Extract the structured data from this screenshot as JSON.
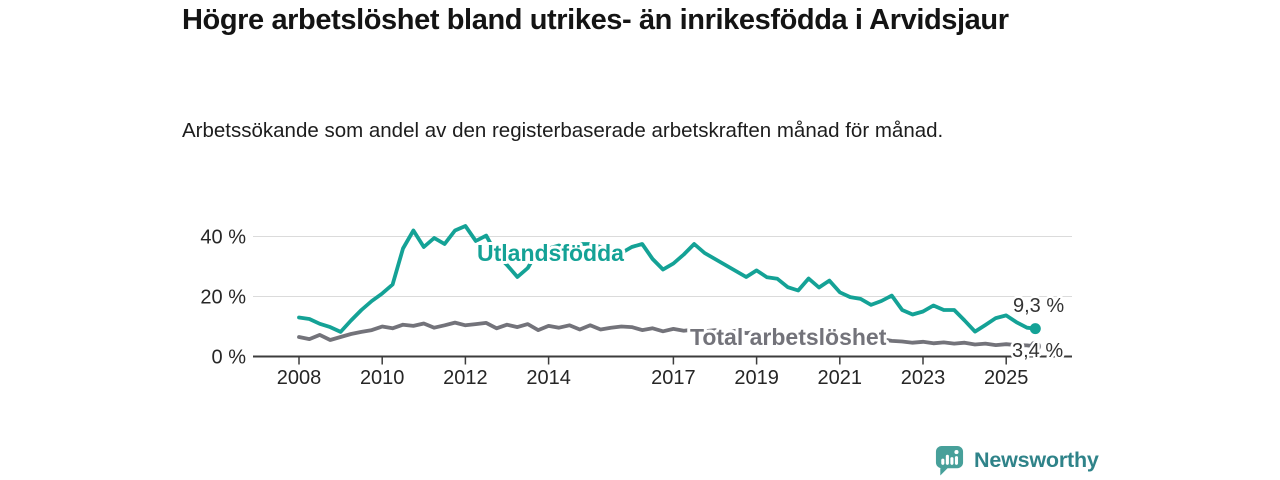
{
  "header": {},
  "chart_data": {
    "type": "line",
    "title": "Högre arbetslöshet bland utrikes- än inrikesfödda i Arvidsjaur",
    "subtitle": "Arbetssökande som andel av den registerbaserade arbetskraften månad för månad.",
    "grid": "horizontal",
    "legend_position": "inline-labels",
    "xlim": [
      2006.9,
      2026.6
    ],
    "ylim": [
      0,
      46
    ],
    "x_axis": {
      "ticks": [
        {
          "year": 2008,
          "label": "2008"
        },
        {
          "year": 2010,
          "label": "2010"
        },
        {
          "year": 2012,
          "label": "2012"
        },
        {
          "year": 2014,
          "label": "2014"
        },
        {
          "year": 2017,
          "label": "2017"
        },
        {
          "year": 2019,
          "label": "2019"
        },
        {
          "year": 2021,
          "label": "2021"
        },
        {
          "year": 2023,
          "label": "2023"
        },
        {
          "year": 2025,
          "label": "2025"
        }
      ]
    },
    "y_axis": {
      "ticks": [
        {
          "value": 0,
          "label": "0 %"
        },
        {
          "value": 20,
          "label": "20 %"
        },
        {
          "value": 40,
          "label": "40 %"
        }
      ]
    },
    "x": [
      2008,
      2008.25,
      2008.5,
      2008.75,
      2009,
      2009.25,
      2009.5,
      2009.75,
      2010,
      2010.25,
      2010.5,
      2010.75,
      2011,
      2011.25,
      2011.5,
      2011.75,
      2012,
      2012.25,
      2012.5,
      2012.75,
      2013,
      2013.25,
      2013.5,
      2013.75,
      2014,
      2014.25,
      2014.5,
      2014.75,
      2015,
      2015.25,
      2015.5,
      2015.75,
      2016,
      2016.25,
      2016.5,
      2016.75,
      2017,
      2017.25,
      2017.5,
      2017.75,
      2018,
      2018.25,
      2018.5,
      2018.75,
      2019,
      2019.25,
      2019.5,
      2019.75,
      2020,
      2020.25,
      2020.5,
      2020.75,
      2021,
      2021.25,
      2021.5,
      2021.75,
      2022,
      2022.25,
      2022.5,
      2022.75,
      2023,
      2023.25,
      2023.5,
      2023.75,
      2024,
      2024.25,
      2024.5,
      2024.75,
      2025,
      2025.25,
      2025.5,
      2025.7
    ],
    "series": [
      {
        "name": "Utlandsfödda",
        "color": "#14a296",
        "end_label": "9,3 %",
        "end_value": 9.3,
        "values": [
          13,
          12.5,
          10.9,
          9.8,
          8.2,
          12,
          15.5,
          18.5,
          21,
          24,
          36,
          42,
          36.5,
          39.5,
          37.5,
          42,
          43.5,
          38.5,
          40.3,
          34,
          30.5,
          26.5,
          29.5,
          35.5,
          36,
          37,
          35.5,
          37.5,
          37.5,
          36.5,
          35,
          34.5,
          36.5,
          37.5,
          32.5,
          29,
          31,
          34,
          37.5,
          34.5,
          32.5,
          30.5,
          28.5,
          26.5,
          28.7,
          26.4,
          25.9,
          23.1,
          22,
          26,
          23,
          25.3,
          21.4,
          19.8,
          19.2,
          17.2,
          18.5,
          20.3,
          15.5,
          14,
          15,
          17,
          15.5,
          15.5,
          12,
          8.3,
          10.5,
          12.8,
          13.7,
          11.4,
          9.6,
          9.3
        ]
      },
      {
        "name": "Total arbetslöshet",
        "color": "#73737a",
        "end_label": "3,4 %",
        "end_value": 3.4,
        "values": [
          6.5,
          5.8,
          7.2,
          5.5,
          6.5,
          7.5,
          8.2,
          8.8,
          10,
          9.4,
          10.6,
          10.2,
          11,
          9.6,
          10.4,
          11.3,
          10.4,
          10.8,
          11.2,
          9.4,
          10.6,
          9.8,
          10.8,
          8.8,
          10.2,
          9.6,
          10.4,
          9,
          10.4,
          9,
          9.6,
          10,
          9.8,
          8.8,
          9.4,
          8.4,
          9.2,
          8.6,
          9,
          8.4,
          8.8,
          8,
          8.6,
          7.8,
          8.2,
          7.6,
          7.9,
          7.3,
          7.6,
          8,
          7.7,
          7.3,
          7.6,
          7,
          6.6,
          6,
          5.8,
          5.2,
          5,
          4.6,
          4.9,
          4.4,
          4.7,
          4.3,
          4.6,
          4,
          4.3,
          3.8,
          4.1,
          3.8,
          3.7,
          3.4
        ]
      }
    ]
  },
  "footer": {
    "brand": "Newsworthy",
    "brand_color": "#2f8389",
    "logo_color": "#47a09a"
  }
}
